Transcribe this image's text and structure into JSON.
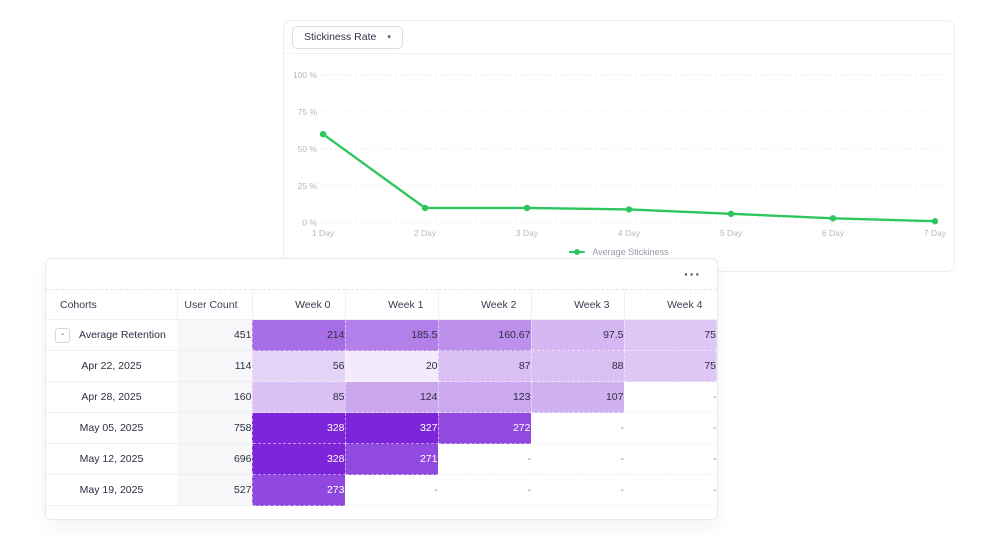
{
  "icons": {
    "dropdown_caret": "▾",
    "more_menu": "···",
    "collapse_minus": "-"
  },
  "chart_card": {
    "metric_selector": {
      "label": "Stickiness Rate"
    },
    "legend": {
      "label": "Average Stickiness",
      "color": "#2dc65c"
    },
    "chart_data": {
      "type": "line",
      "title": "Stickiness Rate",
      "x": [
        "1 Day",
        "2 Day",
        "3 Day",
        "4 Day",
        "5 Day",
        "6 Day",
        "7 Day"
      ],
      "series": [
        {
          "name": "Average Stickiness",
          "values": [
            60,
            10,
            10,
            9,
            6,
            3,
            1
          ],
          "color": "#2dc65c"
        }
      ],
      "ylabel": "",
      "xlabel": "",
      "ylim": [
        0,
        100
      ],
      "y_ticks": [
        {
          "value": 100,
          "label": "100 %"
        },
        {
          "value": 75,
          "label": "75 %"
        },
        {
          "value": 50,
          "label": "50 %"
        },
        {
          "value": 25,
          "label": "25 %"
        },
        {
          "value": 0,
          "label": "0 %"
        }
      ],
      "grid": "horizontal-dashed",
      "legend_position": "bottom",
      "axis_label_color": "#b6b6c3",
      "gridline_color": "#e9e9f0"
    }
  },
  "table_card": {
    "columns": [
      "Cohorts",
      "User Count",
      "Week 0",
      "Week 1",
      "Week 2",
      "Week 3",
      "Week 4"
    ],
    "empty_cell": "-",
    "rows": [
      {
        "cohort": "Average Retention",
        "collapsible": true,
        "user_count": 451,
        "weeks": [
          214,
          185.5,
          160.67,
          97.5,
          75
        ]
      },
      {
        "cohort": "Apr 22, 2025",
        "collapsible": false,
        "user_count": 114,
        "weeks": [
          56,
          20,
          87,
          88,
          75
        ]
      },
      {
        "cohort": "Apr 28, 2025",
        "collapsible": false,
        "user_count": 160,
        "weeks": [
          85,
          124,
          123,
          107,
          null
        ]
      },
      {
        "cohort": "May 05, 2025",
        "collapsible": false,
        "user_count": 758,
        "weeks": [
          328,
          327,
          272,
          null,
          null
        ]
      },
      {
        "cohort": "May 12, 2025",
        "collapsible": false,
        "user_count": 696,
        "weeks": [
          328,
          271,
          null,
          null,
          null
        ]
      },
      {
        "cohort": "May 19, 2025",
        "collapsible": false,
        "user_count": 527,
        "weeks": [
          273,
          null,
          null,
          null,
          null
        ]
      }
    ],
    "heatmap": {
      "min_value": 20,
      "max_value": 328,
      "min_color": "#f3eafb",
      "max_color": "#7c25d9",
      "white_text_threshold": 250,
      "dark_text_color": "#2e2e41",
      "light_text_color": "#ffffff"
    }
  }
}
